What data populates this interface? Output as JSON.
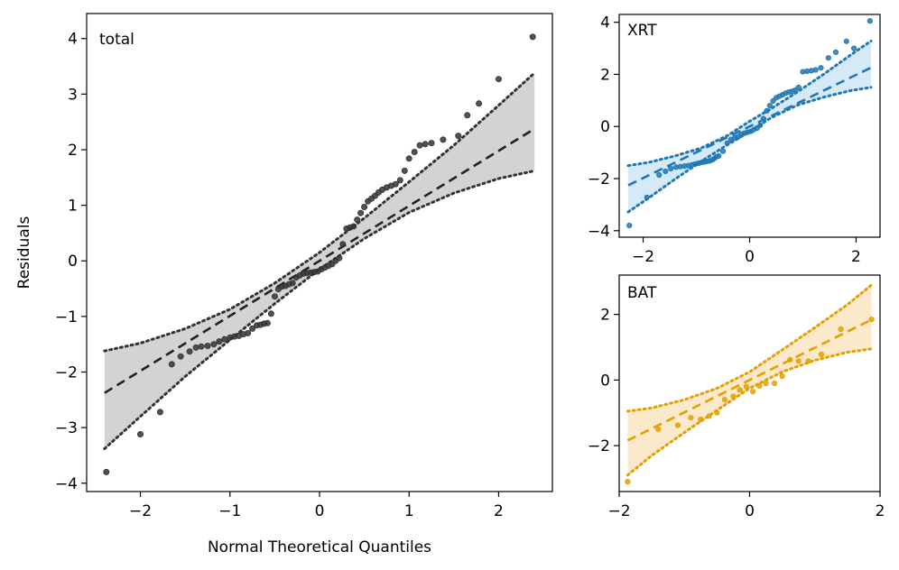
{
  "chart_data": [
    {
      "id": "total",
      "type": "scatter",
      "panel_label": "total",
      "xlabel": "Normal Theoretical Quantiles",
      "ylabel": "Residuals",
      "xlim": [
        -2.6,
        2.6
      ],
      "ylim": [
        -4.15,
        4.45
      ],
      "xticks": [
        -2,
        -1,
        0,
        1,
        2
      ],
      "xtick_labels": [
        "−2",
        "−1",
        "0",
        "1",
        "2"
      ],
      "yticks": [
        -4,
        -3,
        -2,
        -1,
        0,
        1,
        2,
        3,
        4
      ],
      "ytick_labels": [
        "−4",
        "−3",
        "−2",
        "−1",
        "0",
        "1",
        "2",
        "3",
        "4"
      ],
      "colors": {
        "points": "#333333",
        "line": "#222222",
        "band": "#d3d3d3",
        "bounds": "#333333",
        "label": "#000000"
      },
      "fit_line": {
        "slope": 0.99,
        "intercept": 0.0
      },
      "confidence_band": {
        "x": [
          -2.4,
          -2.0,
          -1.5,
          -1.0,
          -0.5,
          0.0,
          0.5,
          1.0,
          1.5,
          2.0,
          2.4
        ],
        "lower": [
          -3.38,
          -2.8,
          -2.08,
          -1.42,
          -0.77,
          -0.15,
          0.4,
          0.87,
          1.22,
          1.48,
          1.62
        ],
        "upper": [
          -1.62,
          -1.48,
          -1.22,
          -0.87,
          -0.4,
          0.15,
          0.77,
          1.42,
          2.08,
          2.8,
          3.38
        ]
      },
      "points": {
        "x": [
          -2.38,
          -2.0,
          -1.78,
          -1.65,
          -1.55,
          -1.45,
          -1.38,
          -1.32,
          -1.25,
          -1.18,
          -1.12,
          -1.06,
          -1.0,
          -0.95,
          -0.9,
          -0.85,
          -0.8,
          -0.75,
          -0.7,
          -0.66,
          -0.62,
          -0.58,
          -0.54,
          -0.5,
          -0.46,
          -0.42,
          -0.38,
          -0.34,
          -0.3,
          -0.26,
          -0.22,
          -0.18,
          -0.14,
          -0.1,
          -0.06,
          -0.02,
          0.02,
          0.06,
          0.1,
          0.14,
          0.18,
          0.22,
          0.26,
          0.3,
          0.34,
          0.38,
          0.42,
          0.46,
          0.5,
          0.54,
          0.58,
          0.62,
          0.66,
          0.7,
          0.75,
          0.8,
          0.85,
          0.9,
          0.95,
          1.0,
          1.06,
          1.12,
          1.18,
          1.25,
          1.38,
          1.55,
          1.65,
          1.78,
          2.0,
          2.38
        ],
        "y": [
          -3.8,
          -3.12,
          -2.72,
          -1.86,
          -1.72,
          -1.63,
          -1.56,
          -1.54,
          -1.53,
          -1.5,
          -1.45,
          -1.41,
          -1.38,
          -1.36,
          -1.35,
          -1.32,
          -1.3,
          -1.22,
          -1.16,
          -1.15,
          -1.13,
          -1.12,
          -0.95,
          -0.64,
          -0.51,
          -0.46,
          -0.45,
          -0.42,
          -0.4,
          -0.3,
          -0.26,
          -0.23,
          -0.22,
          -0.21,
          -0.2,
          -0.19,
          -0.15,
          -0.12,
          -0.09,
          -0.06,
          0.0,
          0.05,
          0.3,
          0.58,
          0.6,
          0.62,
          0.74,
          0.86,
          0.97,
          1.07,
          1.12,
          1.17,
          1.23,
          1.28,
          1.32,
          1.35,
          1.38,
          1.45,
          1.62,
          1.84,
          1.96,
          2.08,
          2.1,
          2.12,
          2.18,
          2.25,
          2.62,
          2.83,
          3.27,
          4.03
        ]
      }
    },
    {
      "id": "xrt",
      "type": "scatter",
      "panel_label": "XRT",
      "xlabel": "",
      "ylabel": "",
      "xlim": [
        -2.45,
        2.45
      ],
      "ylim": [
        -4.25,
        4.3
      ],
      "xticks": [
        -2,
        0,
        2
      ],
      "xtick_labels": [
        "−2",
        "0",
        "2"
      ],
      "yticks": [
        -4,
        -2,
        0,
        2,
        4
      ],
      "ytick_labels": [
        "−4",
        "−2",
        "0",
        "2",
        "4"
      ],
      "colors": {
        "points": "#1f77b4",
        "line": "#1f77b4",
        "band": "#d6e9f7",
        "bounds": "#1f77b4",
        "label": "#1f77b4"
      },
      "fit_line": {
        "slope": 0.99,
        "intercept": 0.0
      },
      "confidence_band": {
        "x": [
          -2.28,
          -1.9,
          -1.4,
          -0.9,
          -0.4,
          0.0,
          0.4,
          0.9,
          1.4,
          1.9,
          2.28
        ],
        "lower": [
          -3.28,
          -2.75,
          -2.02,
          -1.33,
          -0.68,
          -0.2,
          0.33,
          0.82,
          1.13,
          1.38,
          1.5
        ],
        "upper": [
          -1.5,
          -1.38,
          -1.13,
          -0.82,
          -0.33,
          0.2,
          0.68,
          1.33,
          2.02,
          2.75,
          3.28
        ]
      },
      "points": {
        "x": [
          -2.26,
          -1.93,
          -1.7,
          -1.58,
          -1.48,
          -1.38,
          -1.3,
          -1.22,
          -1.15,
          -1.08,
          -1.02,
          -0.96,
          -0.9,
          -0.85,
          -0.8,
          -0.75,
          -0.7,
          -0.66,
          -0.62,
          -0.58,
          -0.5,
          -0.42,
          -0.35,
          -0.28,
          -0.22,
          -0.16,
          -0.1,
          -0.04,
          0.02,
          0.08,
          0.14,
          0.2,
          0.26,
          0.32,
          0.38,
          0.44,
          0.5,
          0.56,
          0.62,
          0.68,
          0.74,
          0.8,
          0.86,
          0.92,
          1.0,
          1.08,
          1.16,
          1.24,
          1.34,
          1.48,
          1.62,
          1.82,
          1.96,
          2.26
        ],
        "y": [
          -3.8,
          -2.72,
          -1.86,
          -1.72,
          -1.62,
          -1.56,
          -1.54,
          -1.52,
          -1.5,
          -1.47,
          -1.44,
          -1.41,
          -1.38,
          -1.36,
          -1.34,
          -1.32,
          -1.28,
          -1.22,
          -1.16,
          -1.13,
          -0.95,
          -0.64,
          -0.5,
          -0.44,
          -0.4,
          -0.3,
          -0.26,
          -0.22,
          -0.19,
          -0.12,
          -0.06,
          0.05,
          0.3,
          0.6,
          0.8,
          0.98,
          1.1,
          1.16,
          1.22,
          1.28,
          1.32,
          1.35,
          1.4,
          1.5,
          2.1,
          2.12,
          2.14,
          2.17,
          2.25,
          2.63,
          2.85,
          3.27,
          3.0,
          4.05
        ]
      }
    },
    {
      "id": "bat",
      "type": "scatter",
      "panel_label": "BAT",
      "xlabel": "",
      "ylabel": "",
      "xlim": [
        -2.0,
        2.0
      ],
      "ylim": [
        -3.4,
        3.2
      ],
      "xticks": [
        -2,
        0,
        2
      ],
      "xtick_labels": [
        "−2",
        "0",
        "2"
      ],
      "yticks": [
        -2,
        0,
        2
      ],
      "ytick_labels": [
        "−2",
        "0",
        "2"
      ],
      "colors": {
        "points": "#e69f00",
        "line": "#e69f00",
        "band": "#fbe9cc",
        "bounds": "#e69f00",
        "label": "#e69f00"
      },
      "fit_line": {
        "slope": 0.985,
        "intercept": 0.0
      },
      "confidence_band": {
        "x": [
          -1.87,
          -1.5,
          -1.0,
          -0.5,
          0.0,
          0.5,
          1.0,
          1.5,
          1.87
        ],
        "lower": [
          -2.9,
          -2.3,
          -1.6,
          -0.92,
          -0.25,
          0.25,
          0.6,
          0.85,
          0.95
        ],
        "upper": [
          -0.95,
          -0.85,
          -0.6,
          -0.25,
          0.25,
          0.92,
          1.6,
          2.3,
          2.9
        ]
      },
      "points": {
        "x": [
          -1.87,
          -1.4,
          -1.1,
          -0.9,
          -0.75,
          -0.62,
          -0.5,
          -0.38,
          -0.25,
          -0.15,
          -0.05,
          0.05,
          0.15,
          0.25,
          0.38,
          0.5,
          0.62,
          0.75,
          0.9,
          1.1,
          1.4,
          1.87
        ],
        "y": [
          -3.1,
          -1.5,
          -1.38,
          -1.15,
          -1.2,
          -1.1,
          -1.0,
          -0.6,
          -0.5,
          -0.3,
          -0.2,
          -0.35,
          -0.18,
          -0.1,
          -0.1,
          0.12,
          0.62,
          0.58,
          0.58,
          0.78,
          1.55,
          1.85
        ]
      }
    }
  ]
}
